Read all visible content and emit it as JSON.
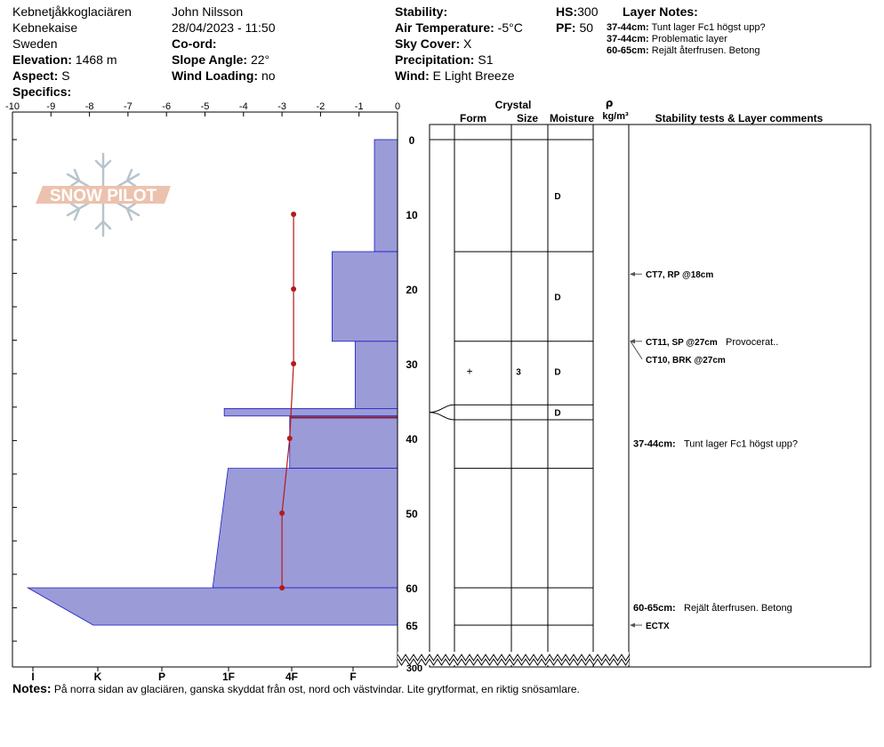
{
  "header": {
    "location": "Kebnetjåkkoglaciären",
    "area": "Kebnekaise",
    "country": "Sweden",
    "elevation_label": "Elevation:",
    "elevation": "1468 m",
    "aspect_label": "Aspect:",
    "aspect": "S",
    "specifics_label": "Specifics:",
    "observer": "John Nilsson",
    "datetime": "28/04/2023 - 11:50",
    "coord_label": "Co-ord:",
    "slope_label": "Slope Angle:",
    "slope": "22°",
    "wind_loading_label": "Wind Loading:",
    "wind_loading": "no",
    "stability_label": "Stability:",
    "air_temp_label": "Air Temperature:",
    "air_temp": "-5°C",
    "sky_label": "Sky Cover:",
    "sky": "X",
    "precip_label": "Precipitation:",
    "precip": "S1",
    "wind_label": "Wind:",
    "wind": "E Light Breeze",
    "hs_label": "HS:",
    "hs": "300",
    "pf_label": "PF:",
    "pf": "50",
    "layer_notes_label": "Layer Notes:",
    "layer_notes": [
      {
        "range": "37-44cm:",
        "text": "Tunt lager Fc1 högst upp?"
      },
      {
        "range": "37-44cm:",
        "text": "Problematic layer"
      },
      {
        "range": "60-65cm:",
        "text": "Rejält återfrusen. Betong"
      }
    ]
  },
  "watermark": {
    "text": "SNOW PILOT"
  },
  "notes": {
    "label": "Notes:",
    "text": "På norra sidan av glaciären, ganska skyddat från ost, nord och västvindar. Lite grytformat, en riktig snösamlare."
  },
  "columns": {
    "crystal": "Crystal",
    "form": "Form",
    "size": "Size",
    "moisture": "Moisture",
    "rho": "ρ",
    "density_unit": "kg/m³",
    "stability_comments": "Stability tests & Layer comments"
  },
  "colors": {
    "layer_fill": "#9b9bd8",
    "layer_stroke": "#1a1ac8",
    "temp_line": "#b21a1a",
    "watermark": "#e8b49c",
    "flake": "#b8c4cc"
  },
  "chart_data": {
    "type": "snow_profile",
    "temp_axis": {
      "ticks": [
        "-10",
        "-9",
        "-8",
        "-7",
        "-6",
        "-5",
        "-4",
        "-3",
        "-2",
        "-1",
        "0"
      ],
      "range": [
        -10,
        0
      ]
    },
    "hardness_axis": {
      "ticks": [
        "I",
        "K",
        "P",
        "1F",
        "4F",
        "F"
      ]
    },
    "depth_axis": {
      "ticks": [
        "0",
        "10",
        "20",
        "30",
        "40",
        "50",
        "60",
        "65"
      ],
      "bottom_label": "300"
    },
    "hardness_layers": [
      {
        "top": 0,
        "bottom": 15,
        "hardness": 0.6
      },
      {
        "top": 15,
        "bottom": 27,
        "hardness": 1.7
      },
      {
        "top": 27,
        "bottom": 36,
        "hardness": 1.1
      },
      {
        "top": 36,
        "bottom": 37,
        "hardness": 4.5
      },
      {
        "top": 37,
        "bottom": 44,
        "hardness": 2.8
      },
      {
        "top": 44,
        "bottom": 50,
        "hardness": 4.4
      },
      {
        "top": 50,
        "bottom": 60,
        "hardness": 4.8
      },
      {
        "top": 60,
        "bottom": 60,
        "hardness": 9.6
      },
      {
        "top": 65,
        "bottom": 65,
        "hardness": 7.9
      }
    ],
    "temperature_profile": [
      {
        "depth": 10,
        "temp": -2.7
      },
      {
        "depth": 20,
        "temp": -2.7
      },
      {
        "depth": 30,
        "temp": -2.7
      },
      {
        "depth": 40,
        "temp": -2.8
      },
      {
        "depth": 50,
        "temp": -3.0
      },
      {
        "depth": 60,
        "temp": -3.0
      }
    ],
    "layer_boundaries": [
      15,
      27,
      35.5,
      37.5,
      44,
      60,
      65
    ],
    "layers": [
      {
        "depth": 7.5,
        "form": "",
        "size": "",
        "moisture": "D"
      },
      {
        "depth": 21,
        "form": "",
        "size": "",
        "moisture": "D"
      },
      {
        "depth": 31,
        "form": "+",
        "size": "3",
        "moisture": "D"
      },
      {
        "depth": 36.5,
        "form": "",
        "size": "",
        "moisture": "D"
      }
    ],
    "stability_tests": [
      {
        "depth": 18,
        "text": "CT7, RP @18cm",
        "comment": ""
      },
      {
        "depth": 27,
        "text": "CT11, SP @27cm",
        "comment": "Provocerat.."
      },
      {
        "depth": 27,
        "text": "CT10, BRK @27cm",
        "comment": ""
      },
      {
        "depth": 65,
        "text": "ECTX",
        "comment": ""
      }
    ],
    "layer_comments": [
      {
        "depth": 41,
        "range": "37-44cm:",
        "text": "Tunt lager Fc1 högst upp?"
      },
      {
        "depth": 62.5,
        "range": "60-65cm:",
        "text": "Rejält återfrusen. Betong"
      }
    ]
  }
}
